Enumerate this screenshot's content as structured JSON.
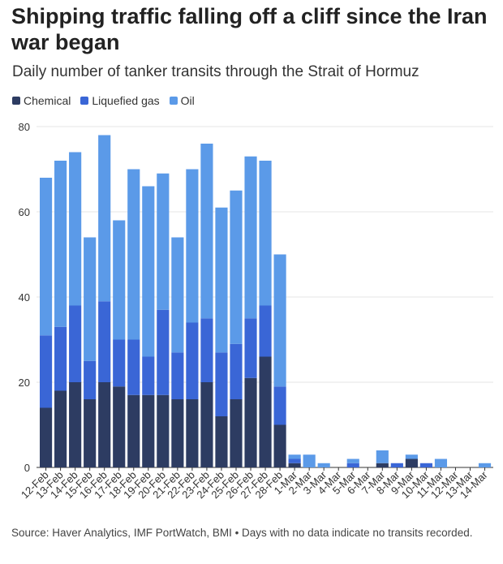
{
  "title": "Shipping traffic falling off a cliff since the Iran war began",
  "subtitle": "Daily number of tanker transits through the Strait of Hormuz",
  "footer": "Source: Haver Analytics, IMF PortWatch, BMI • Days with no data indicate no transits recorded.",
  "colors": {
    "chemical": "#2d3c62",
    "liquefied_gas": "#3a66d6",
    "oil": "#5b9ae8",
    "grid": "#e6e6e6",
    "axis": "#333333"
  },
  "chart_data": {
    "type": "bar",
    "stacked": true,
    "grid": true,
    "legend_position": "top-left",
    "ylim": [
      0,
      80
    ],
    "yticks": [
      0,
      20,
      40,
      60,
      80
    ],
    "categories": [
      "12-Feb",
      "13-Feb",
      "14-Feb",
      "15-Feb",
      "16-Feb",
      "17-Feb",
      "18-Feb",
      "19-Feb",
      "20-Feb",
      "21-Feb",
      "22-Feb",
      "23-Feb",
      "24-Feb",
      "25-Feb",
      "26-Feb",
      "27-Feb",
      "28-Feb",
      "1-Mar",
      "2-Mar",
      "3-Mar",
      "4-Mar",
      "5-Mar",
      "6-Mar",
      "7-Mar",
      "8-Mar",
      "9-Mar",
      "10-Mar",
      "11-Mar",
      "12-Mar",
      "13-Mar",
      "14-Mar"
    ],
    "series": [
      {
        "name": "Chemical",
        "color_key": "chemical",
        "values": [
          14,
          18,
          20,
          16,
          20,
          19,
          17,
          17,
          17,
          16,
          16,
          20,
          12,
          16,
          21,
          26,
          10,
          1,
          0,
          0,
          0,
          0,
          0,
          1,
          0,
          2,
          0,
          0,
          0,
          0,
          0
        ]
      },
      {
        "name": "Liquefied gas",
        "color_key": "liquefied_gas",
        "values": [
          17,
          15,
          18,
          9,
          19,
          11,
          13,
          9,
          20,
          11,
          18,
          15,
          15,
          13,
          14,
          12,
          9,
          1,
          0,
          0,
          0,
          1,
          0,
          0,
          1,
          0,
          1,
          0,
          0,
          0,
          0
        ]
      },
      {
        "name": "Oil",
        "color_key": "oil",
        "values": [
          37,
          39,
          36,
          29,
          39,
          28,
          40,
          40,
          32,
          27,
          36,
          41,
          34,
          36,
          38,
          34,
          31,
          1,
          3,
          1,
          0,
          1,
          0,
          3,
          0,
          1,
          0,
          2,
          0,
          0,
          1
        ]
      }
    ]
  }
}
